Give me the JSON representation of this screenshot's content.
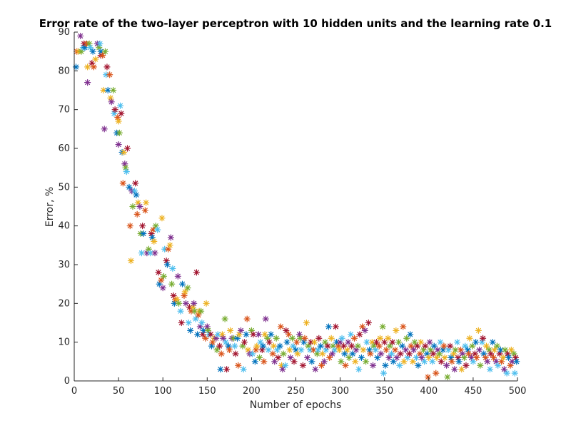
{
  "chart_data": {
    "type": "scatter",
    "title": "Error rate of the two-layer perceptron with 10 hidden units and the learning rate 0.1",
    "xlabel": "Number of epochs",
    "ylabel": "Error, %",
    "xlim": [
      0,
      500
    ],
    "ylim": [
      0,
      90
    ],
    "xticks": [
      0,
      50,
      100,
      150,
      200,
      250,
      300,
      350,
      400,
      450,
      500
    ],
    "yticks": [
      0,
      10,
      20,
      30,
      40,
      50,
      60,
      70,
      80,
      90
    ],
    "marker": "asterisk",
    "grid": false,
    "colors": [
      "#0072BD",
      "#D95319",
      "#EDB120",
      "#7E2F8E",
      "#77AC30",
      "#4DBEEE",
      "#A2142F"
    ],
    "points": [
      [
        2,
        81
      ],
      [
        3,
        85
      ],
      [
        5,
        85
      ],
      [
        7,
        89
      ],
      [
        8,
        85
      ],
      [
        10,
        86
      ],
      [
        11,
        87
      ],
      [
        12,
        86
      ],
      [
        14,
        87
      ],
      [
        15,
        81
      ],
      [
        15,
        77
      ],
      [
        17,
        87
      ],
      [
        18,
        86
      ],
      [
        20,
        82
      ],
      [
        21,
        85
      ],
      [
        22,
        81
      ],
      [
        24,
        83
      ],
      [
        26,
        87
      ],
      [
        28,
        86
      ],
      [
        29,
        87
      ],
      [
        30,
        84
      ],
      [
        30,
        85
      ],
      [
        32,
        84
      ],
      [
        33,
        75
      ],
      [
        34,
        65
      ],
      [
        35,
        85
      ],
      [
        36,
        79
      ],
      [
        37,
        81
      ],
      [
        38,
        75
      ],
      [
        40,
        79
      ],
      [
        41,
        73
      ],
      [
        42,
        72
      ],
      [
        44,
        75
      ],
      [
        45,
        69
      ],
      [
        46,
        70
      ],
      [
        48,
        64
      ],
      [
        49,
        68
      ],
      [
        50,
        67
      ],
      [
        50,
        61
      ],
      [
        51,
        64
      ],
      [
        52,
        71
      ],
      [
        53,
        69
      ],
      [
        54,
        59
      ],
      [
        55,
        51
      ],
      [
        56,
        59
      ],
      [
        57,
        56
      ],
      [
        58,
        55
      ],
      [
        59,
        54
      ],
      [
        60,
        60
      ],
      [
        62,
        50
      ],
      [
        63,
        40
      ],
      [
        64,
        31
      ],
      [
        65,
        49
      ],
      [
        66,
        45
      ],
      [
        68,
        49
      ],
      [
        69,
        51
      ],
      [
        70,
        48
      ],
      [
        71,
        43
      ],
      [
        72,
        46
      ],
      [
        74,
        45
      ],
      [
        75,
        38
      ],
      [
        76,
        33
      ],
      [
        77,
        40
      ],
      [
        78,
        38
      ],
      [
        80,
        44
      ],
      [
        81,
        46
      ],
      [
        82,
        33
      ],
      [
        84,
        34
      ],
      [
        86,
        33
      ],
      [
        87,
        38
      ],
      [
        88,
        37
      ],
      [
        89,
        39
      ],
      [
        90,
        36
      ],
      [
        91,
        33
      ],
      [
        92,
        40
      ],
      [
        94,
        39
      ],
      [
        95,
        28
      ],
      [
        96,
        25
      ],
      [
        98,
        26
      ],
      [
        99,
        42
      ],
      [
        100,
        24
      ],
      [
        101,
        27
      ],
      [
        102,
        34
      ],
      [
        104,
        31
      ],
      [
        105,
        30
      ],
      [
        106,
        34
      ],
      [
        108,
        35
      ],
      [
        109,
        37
      ],
      [
        110,
        25
      ],
      [
        111,
        29
      ],
      [
        112,
        22
      ],
      [
        113,
        20
      ],
      [
        114,
        21
      ],
      [
        116,
        21
      ],
      [
        117,
        27
      ],
      [
        118,
        20
      ],
      [
        120,
        18
      ],
      [
        121,
        15
      ],
      [
        122,
        25
      ],
      [
        124,
        22
      ],
      [
        125,
        23
      ],
      [
        126,
        20
      ],
      [
        128,
        24
      ],
      [
        129,
        15
      ],
      [
        130,
        19
      ],
      [
        131,
        13
      ],
      [
        132,
        18
      ],
      [
        134,
        19
      ],
      [
        135,
        20
      ],
      [
        136,
        18
      ],
      [
        137,
        16
      ],
      [
        138,
        28
      ],
      [
        139,
        12
      ],
      [
        140,
        17
      ],
      [
        141,
        18
      ],
      [
        142,
        14
      ],
      [
        143,
        18
      ],
      [
        144,
        15
      ],
      [
        145,
        12
      ],
      [
        146,
        13
      ],
      [
        148,
        11
      ],
      [
        149,
        20
      ],
      [
        150,
        14
      ],
      [
        151,
        13
      ],
      [
        152,
        12
      ],
      [
        154,
        12
      ],
      [
        155,
        9
      ],
      [
        156,
        10
      ],
      [
        158,
        11
      ],
      [
        160,
        11
      ],
      [
        161,
        8
      ],
      [
        162,
        12
      ],
      [
        164,
        9
      ],
      [
        165,
        3
      ],
      [
        166,
        7
      ],
      [
        167,
        12
      ],
      [
        168,
        11
      ],
      [
        170,
        16
      ],
      [
        171,
        10
      ],
      [
        172,
        3
      ],
      [
        174,
        9
      ],
      [
        175,
        8
      ],
      [
        176,
        13
      ],
      [
        178,
        11
      ],
      [
        180,
        11
      ],
      [
        181,
        9
      ],
      [
        182,
        7
      ],
      [
        184,
        11
      ],
      [
        185,
        4
      ],
      [
        186,
        12
      ],
      [
        188,
        13
      ],
      [
        190,
        9
      ],
      [
        191,
        3
      ],
      [
        192,
        10
      ],
      [
        194,
        12
      ],
      [
        195,
        16
      ],
      [
        196,
        8
      ],
      [
        198,
        7
      ],
      [
        200,
        13
      ],
      [
        201,
        7
      ],
      [
        202,
        12
      ],
      [
        204,
        5
      ],
      [
        205,
        8
      ],
      [
        206,
        9
      ],
      [
        208,
        12
      ],
      [
        209,
        6
      ],
      [
        210,
        10
      ],
      [
        212,
        8
      ],
      [
        213,
        9
      ],
      [
        214,
        5
      ],
      [
        215,
        12
      ],
      [
        216,
        16
      ],
      [
        218,
        11
      ],
      [
        219,
        8
      ],
      [
        220,
        10
      ],
      [
        222,
        12
      ],
      [
        224,
        7
      ],
      [
        225,
        9
      ],
      [
        226,
        5
      ],
      [
        228,
        11
      ],
      [
        229,
        8
      ],
      [
        230,
        6
      ],
      [
        232,
        9
      ],
      [
        233,
        14
      ],
      [
        234,
        4
      ],
      [
        235,
        3
      ],
      [
        236,
        7
      ],
      [
        238,
        4
      ],
      [
        239,
        13
      ],
      [
        240,
        10
      ],
      [
        242,
        12
      ],
      [
        243,
        8
      ],
      [
        244,
        6
      ],
      [
        246,
        11
      ],
      [
        247,
        9
      ],
      [
        248,
        5
      ],
      [
        250,
        8
      ],
      [
        251,
        10
      ],
      [
        252,
        7
      ],
      [
        254,
        12
      ],
      [
        255,
        11
      ],
      [
        256,
        8
      ],
      [
        258,
        4
      ],
      [
        259,
        10
      ],
      [
        260,
        11
      ],
      [
        262,
        15
      ],
      [
        263,
        6
      ],
      [
        264,
        9
      ],
      [
        266,
        8
      ],
      [
        267,
        10
      ],
      [
        268,
        5
      ],
      [
        270,
        8
      ],
      [
        271,
        10
      ],
      [
        272,
        3
      ],
      [
        274,
        7
      ],
      [
        275,
        8
      ],
      [
        276,
        11
      ],
      [
        278,
        9
      ],
      [
        279,
        4
      ],
      [
        280,
        7
      ],
      [
        282,
        5
      ],
      [
        283,
        10
      ],
      [
        284,
        8
      ],
      [
        286,
        9
      ],
      [
        287,
        14
      ],
      [
        288,
        6
      ],
      [
        290,
        11
      ],
      [
        291,
        7
      ],
      [
        292,
        9
      ],
      [
        294,
        8
      ],
      [
        295,
        14
      ],
      [
        296,
        10
      ],
      [
        298,
        9
      ],
      [
        299,
        8
      ],
      [
        300,
        10
      ],
      [
        301,
        5
      ],
      [
        302,
        11
      ],
      [
        304,
        9
      ],
      [
        305,
        7
      ],
      [
        306,
        4
      ],
      [
        308,
        8
      ],
      [
        309,
        10
      ],
      [
        310,
        6
      ],
      [
        312,
        12
      ],
      [
        313,
        9
      ],
      [
        314,
        7
      ],
      [
        316,
        11
      ],
      [
        317,
        5
      ],
      [
        318,
        8
      ],
      [
        320,
        9
      ],
      [
        321,
        3
      ],
      [
        322,
        12
      ],
      [
        324,
        6
      ],
      [
        325,
        14
      ],
      [
        326,
        8
      ],
      [
        328,
        13
      ],
      [
        329,
        5
      ],
      [
        330,
        10
      ],
      [
        332,
        15
      ],
      [
        333,
        8
      ],
      [
        334,
        7
      ],
      [
        336,
        10
      ],
      [
        337,
        4
      ],
      [
        338,
        9
      ],
      [
        340,
        8
      ],
      [
        341,
        10
      ],
      [
        342,
        6
      ],
      [
        344,
        9
      ],
      [
        345,
        11
      ],
      [
        346,
        7
      ],
      [
        348,
        14
      ],
      [
        349,
        2
      ],
      [
        350,
        10
      ],
      [
        351,
        4
      ],
      [
        352,
        8
      ],
      [
        354,
        11
      ],
      [
        355,
        6
      ],
      [
        356,
        9
      ],
      [
        358,
        7
      ],
      [
        359,
        10
      ],
      [
        360,
        5
      ],
      [
        362,
        8
      ],
      [
        363,
        13
      ],
      [
        364,
        6
      ],
      [
        366,
        10
      ],
      [
        367,
        4
      ],
      [
        368,
        7
      ],
      [
        370,
        9
      ],
      [
        371,
        14
      ],
      [
        372,
        5
      ],
      [
        374,
        8
      ],
      [
        375,
        11
      ],
      [
        376,
        6
      ],
      [
        378,
        7
      ],
      [
        379,
        12
      ],
      [
        380,
        9
      ],
      [
        382,
        5
      ],
      [
        383,
        8
      ],
      [
        384,
        10
      ],
      [
        386,
        6
      ],
      [
        387,
        9
      ],
      [
        388,
        4
      ],
      [
        390,
        7
      ],
      [
        391,
        10
      ],
      [
        392,
        6
      ],
      [
        394,
        8
      ],
      [
        395,
        5
      ],
      [
        396,
        9
      ],
      [
        398,
        7
      ],
      [
        399,
        1
      ],
      [
        400,
        6
      ],
      [
        401,
        10
      ],
      [
        402,
        8
      ],
      [
        404,
        5
      ],
      [
        405,
        7
      ],
      [
        406,
        9
      ],
      [
        408,
        2
      ],
      [
        409,
        6
      ],
      [
        410,
        8
      ],
      [
        412,
        7
      ],
      [
        413,
        10
      ],
      [
        414,
        5
      ],
      [
        416,
        8
      ],
      [
        417,
        9
      ],
      [
        418,
        6
      ],
      [
        420,
        4
      ],
      [
        421,
        1
      ],
      [
        422,
        8
      ],
      [
        424,
        9
      ],
      [
        425,
        6
      ],
      [
        426,
        5
      ],
      [
        428,
        7
      ],
      [
        429,
        3
      ],
      [
        430,
        8
      ],
      [
        432,
        10
      ],
      [
        433,
        6
      ],
      [
        434,
        5
      ],
      [
        436,
        8
      ],
      [
        437,
        3
      ],
      [
        438,
        7
      ],
      [
        440,
        6
      ],
      [
        441,
        9
      ],
      [
        442,
        4
      ],
      [
        444,
        8
      ],
      [
        445,
        7
      ],
      [
        446,
        11
      ],
      [
        448,
        6
      ],
      [
        449,
        9
      ],
      [
        450,
        5
      ],
      [
        452,
        7
      ],
      [
        453,
        10
      ],
      [
        454,
        6
      ],
      [
        456,
        13
      ],
      [
        457,
        8
      ],
      [
        458,
        4
      ],
      [
        460,
        10
      ],
      [
        461,
        11
      ],
      [
        462,
        7
      ],
      [
        464,
        6
      ],
      [
        465,
        9
      ],
      [
        466,
        5
      ],
      [
        468,
        8
      ],
      [
        469,
        3
      ],
      [
        470,
        7
      ],
      [
        472,
        10
      ],
      [
        473,
        6
      ],
      [
        474,
        8
      ],
      [
        476,
        5
      ],
      [
        477,
        9
      ],
      [
        478,
        4
      ],
      [
        480,
        7
      ],
      [
        481,
        8
      ],
      [
        482,
        5
      ],
      [
        484,
        6
      ],
      [
        485,
        3
      ],
      [
        486,
        8
      ],
      [
        488,
        2
      ],
      [
        489,
        7
      ],
      [
        490,
        6
      ],
      [
        492,
        4
      ],
      [
        493,
        8
      ],
      [
        494,
        5
      ],
      [
        496,
        7
      ],
      [
        497,
        2
      ],
      [
        498,
        6
      ],
      [
        499,
        5
      ]
    ]
  }
}
